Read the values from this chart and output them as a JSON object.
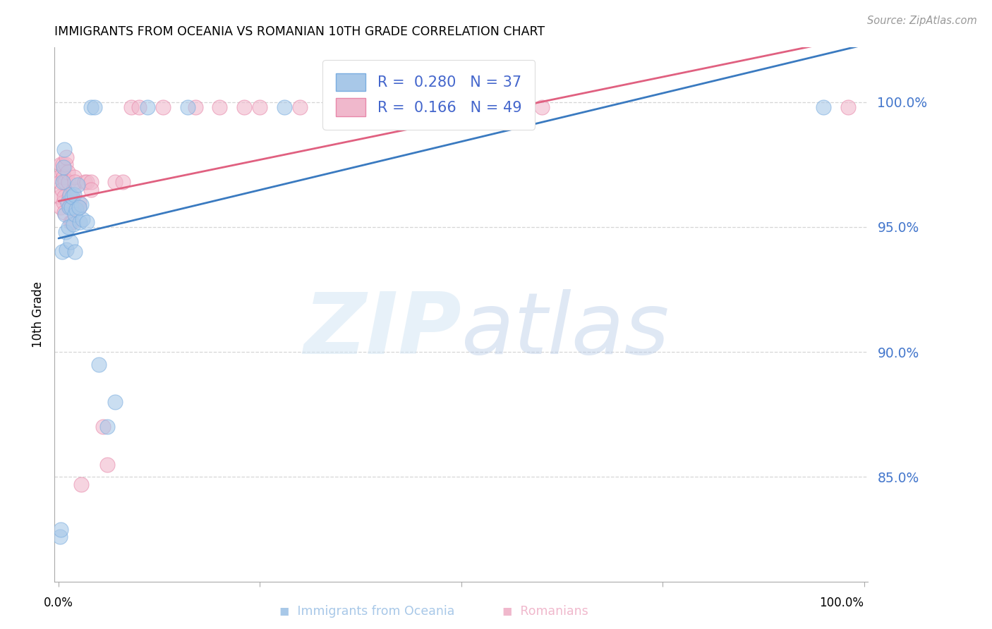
{
  "title": "IMMIGRANTS FROM OCEANIA VS ROMANIAN 10TH GRADE CORRELATION CHART",
  "source": "Source: ZipAtlas.com",
  "ylabel": "10th Grade",
  "y_tick_values": [
    0.85,
    0.9,
    0.95,
    1.0
  ],
  "y_tick_labels": [
    "85.0%",
    "90.0%",
    "95.0%",
    "100.0%"
  ],
  "x_tick_values": [
    0.0,
    0.25,
    0.5,
    0.75,
    1.0
  ],
  "x_lim": [
    -0.005,
    1.005
  ],
  "y_lim": [
    0.808,
    1.022
  ],
  "legend_blue_r": "0.280",
  "legend_blue_n": "37",
  "legend_pink_r": "0.166",
  "legend_pink_n": "49",
  "blue_marker_color": "#a8c8e8",
  "blue_marker_edge": "#7aade0",
  "pink_marker_color": "#f0b8cc",
  "pink_marker_edge": "#e888aa",
  "blue_line_color": "#3a7ac0",
  "pink_line_color": "#e06080",
  "legend_text_color": "#4466cc",
  "ytick_color": "#4477cc",
  "watermark_color": "#d0e4f4",
  "blue_label": "Immigrants from Oceania",
  "pink_label": "Romanians",
  "blue_x": [
    0.002,
    0.003,
    0.004,
    0.005,
    0.006,
    0.007,
    0.008,
    0.009,
    0.01,
    0.011,
    0.012,
    0.013,
    0.014,
    0.015,
    0.016,
    0.017,
    0.018,
    0.019,
    0.02,
    0.022,
    0.024,
    0.026,
    0.028,
    0.03,
    0.035,
    0.04,
    0.045,
    0.05,
    0.06,
    0.07,
    0.11,
    0.16,
    0.28,
    0.55,
    0.95,
    0.02,
    0.025
  ],
  "blue_y": [
    0.826,
    0.829,
    0.94,
    0.968,
    0.974,
    0.981,
    0.955,
    0.948,
    0.941,
    0.96,
    0.95,
    0.958,
    0.963,
    0.944,
    0.958,
    0.962,
    0.951,
    0.963,
    0.955,
    0.957,
    0.967,
    0.952,
    0.959,
    0.953,
    0.952,
    0.998,
    0.998,
    0.895,
    0.87,
    0.88,
    0.998,
    0.998,
    0.998,
    0.998,
    0.998,
    0.94,
    0.958
  ],
  "pink_x": [
    0.001,
    0.002,
    0.002,
    0.003,
    0.003,
    0.004,
    0.005,
    0.005,
    0.006,
    0.006,
    0.007,
    0.007,
    0.008,
    0.009,
    0.01,
    0.011,
    0.012,
    0.013,
    0.014,
    0.015,
    0.016,
    0.017,
    0.018,
    0.019,
    0.02,
    0.022,
    0.025,
    0.028,
    0.032,
    0.035,
    0.04,
    0.055,
    0.06,
    0.07,
    0.08,
    0.09,
    0.1,
    0.13,
    0.17,
    0.2,
    0.23,
    0.25,
    0.3,
    0.4,
    0.5,
    0.6,
    0.98,
    0.04,
    0.025
  ],
  "pink_y": [
    0.97,
    0.968,
    0.962,
    0.958,
    0.975,
    0.965,
    0.972,
    0.975,
    0.96,
    0.97,
    0.962,
    0.956,
    0.968,
    0.975,
    0.978,
    0.972,
    0.968,
    0.962,
    0.958,
    0.952,
    0.96,
    0.952,
    0.965,
    0.97,
    0.968,
    0.958,
    0.96,
    0.847,
    0.968,
    0.968,
    0.968,
    0.87,
    0.855,
    0.968,
    0.968,
    0.998,
    0.998,
    0.998,
    0.998,
    0.998,
    0.998,
    0.998,
    0.998,
    0.998,
    0.998,
    0.998,
    0.998,
    0.965,
    0.958
  ]
}
